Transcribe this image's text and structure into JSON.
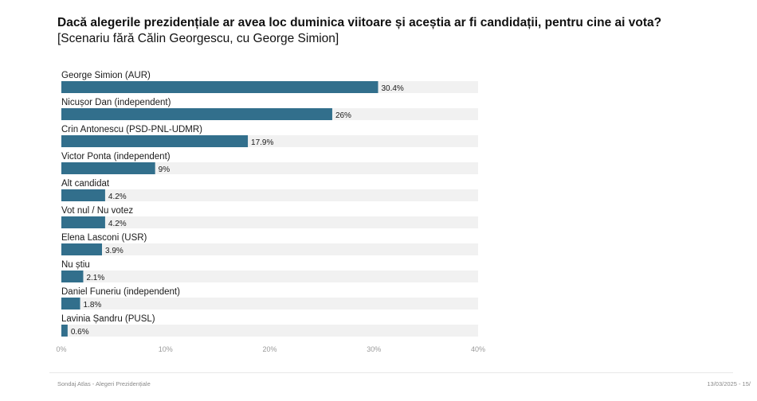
{
  "header": {
    "title": "Dacă alegerile prezidențiale ar avea loc duminica viitoare și aceștia ar fi candidații, pentru cine ai vota?",
    "subtitle": "[Scenariu fără Călin Georgescu, cu George Simion]"
  },
  "footer": {
    "source": "Sondaj Atlas - Alegeri Prezidențiale",
    "date_page": "13/03/2025 - 15/"
  },
  "colors": {
    "bar": "#326f8c",
    "track": "#f1f1f1"
  },
  "chart_data": {
    "type": "bar",
    "orientation": "horizontal",
    "title": "Dacă alegerile prezidențiale ar avea loc duminica viitoare și aceștia ar fi candidații, pentru cine ai vota?",
    "subtitle": "[Scenariu fără Călin Georgescu, cu George Simion]",
    "categories": [
      "George Simion (AUR)",
      "Nicușor Dan (independent)",
      "Crin Antonescu (PSD-PNL-UDMR)",
      "Victor Ponta (independent)",
      "Alt candidat",
      "Vot nul / Nu votez",
      "Elena Lasconi (USR)",
      "Nu știu",
      "Daniel Funeriu (independent)",
      "Lavinia Șandru (PUSL)"
    ],
    "values": [
      30.4,
      26,
      17.9,
      9,
      4.2,
      4.2,
      3.9,
      2.1,
      1.8,
      0.6
    ],
    "value_labels": [
      "30.4%",
      "26%",
      "17.9%",
      "9%",
      "4.2%",
      "4.2%",
      "3.9%",
      "2.1%",
      "1.8%",
      "0.6%"
    ],
    "xlim": [
      0,
      40
    ],
    "ticks": [
      0,
      10,
      20,
      30,
      40
    ],
    "tick_labels": [
      "0%",
      "10%",
      "20%",
      "30%",
      "40%"
    ],
    "grid": false,
    "legend": "none"
  }
}
